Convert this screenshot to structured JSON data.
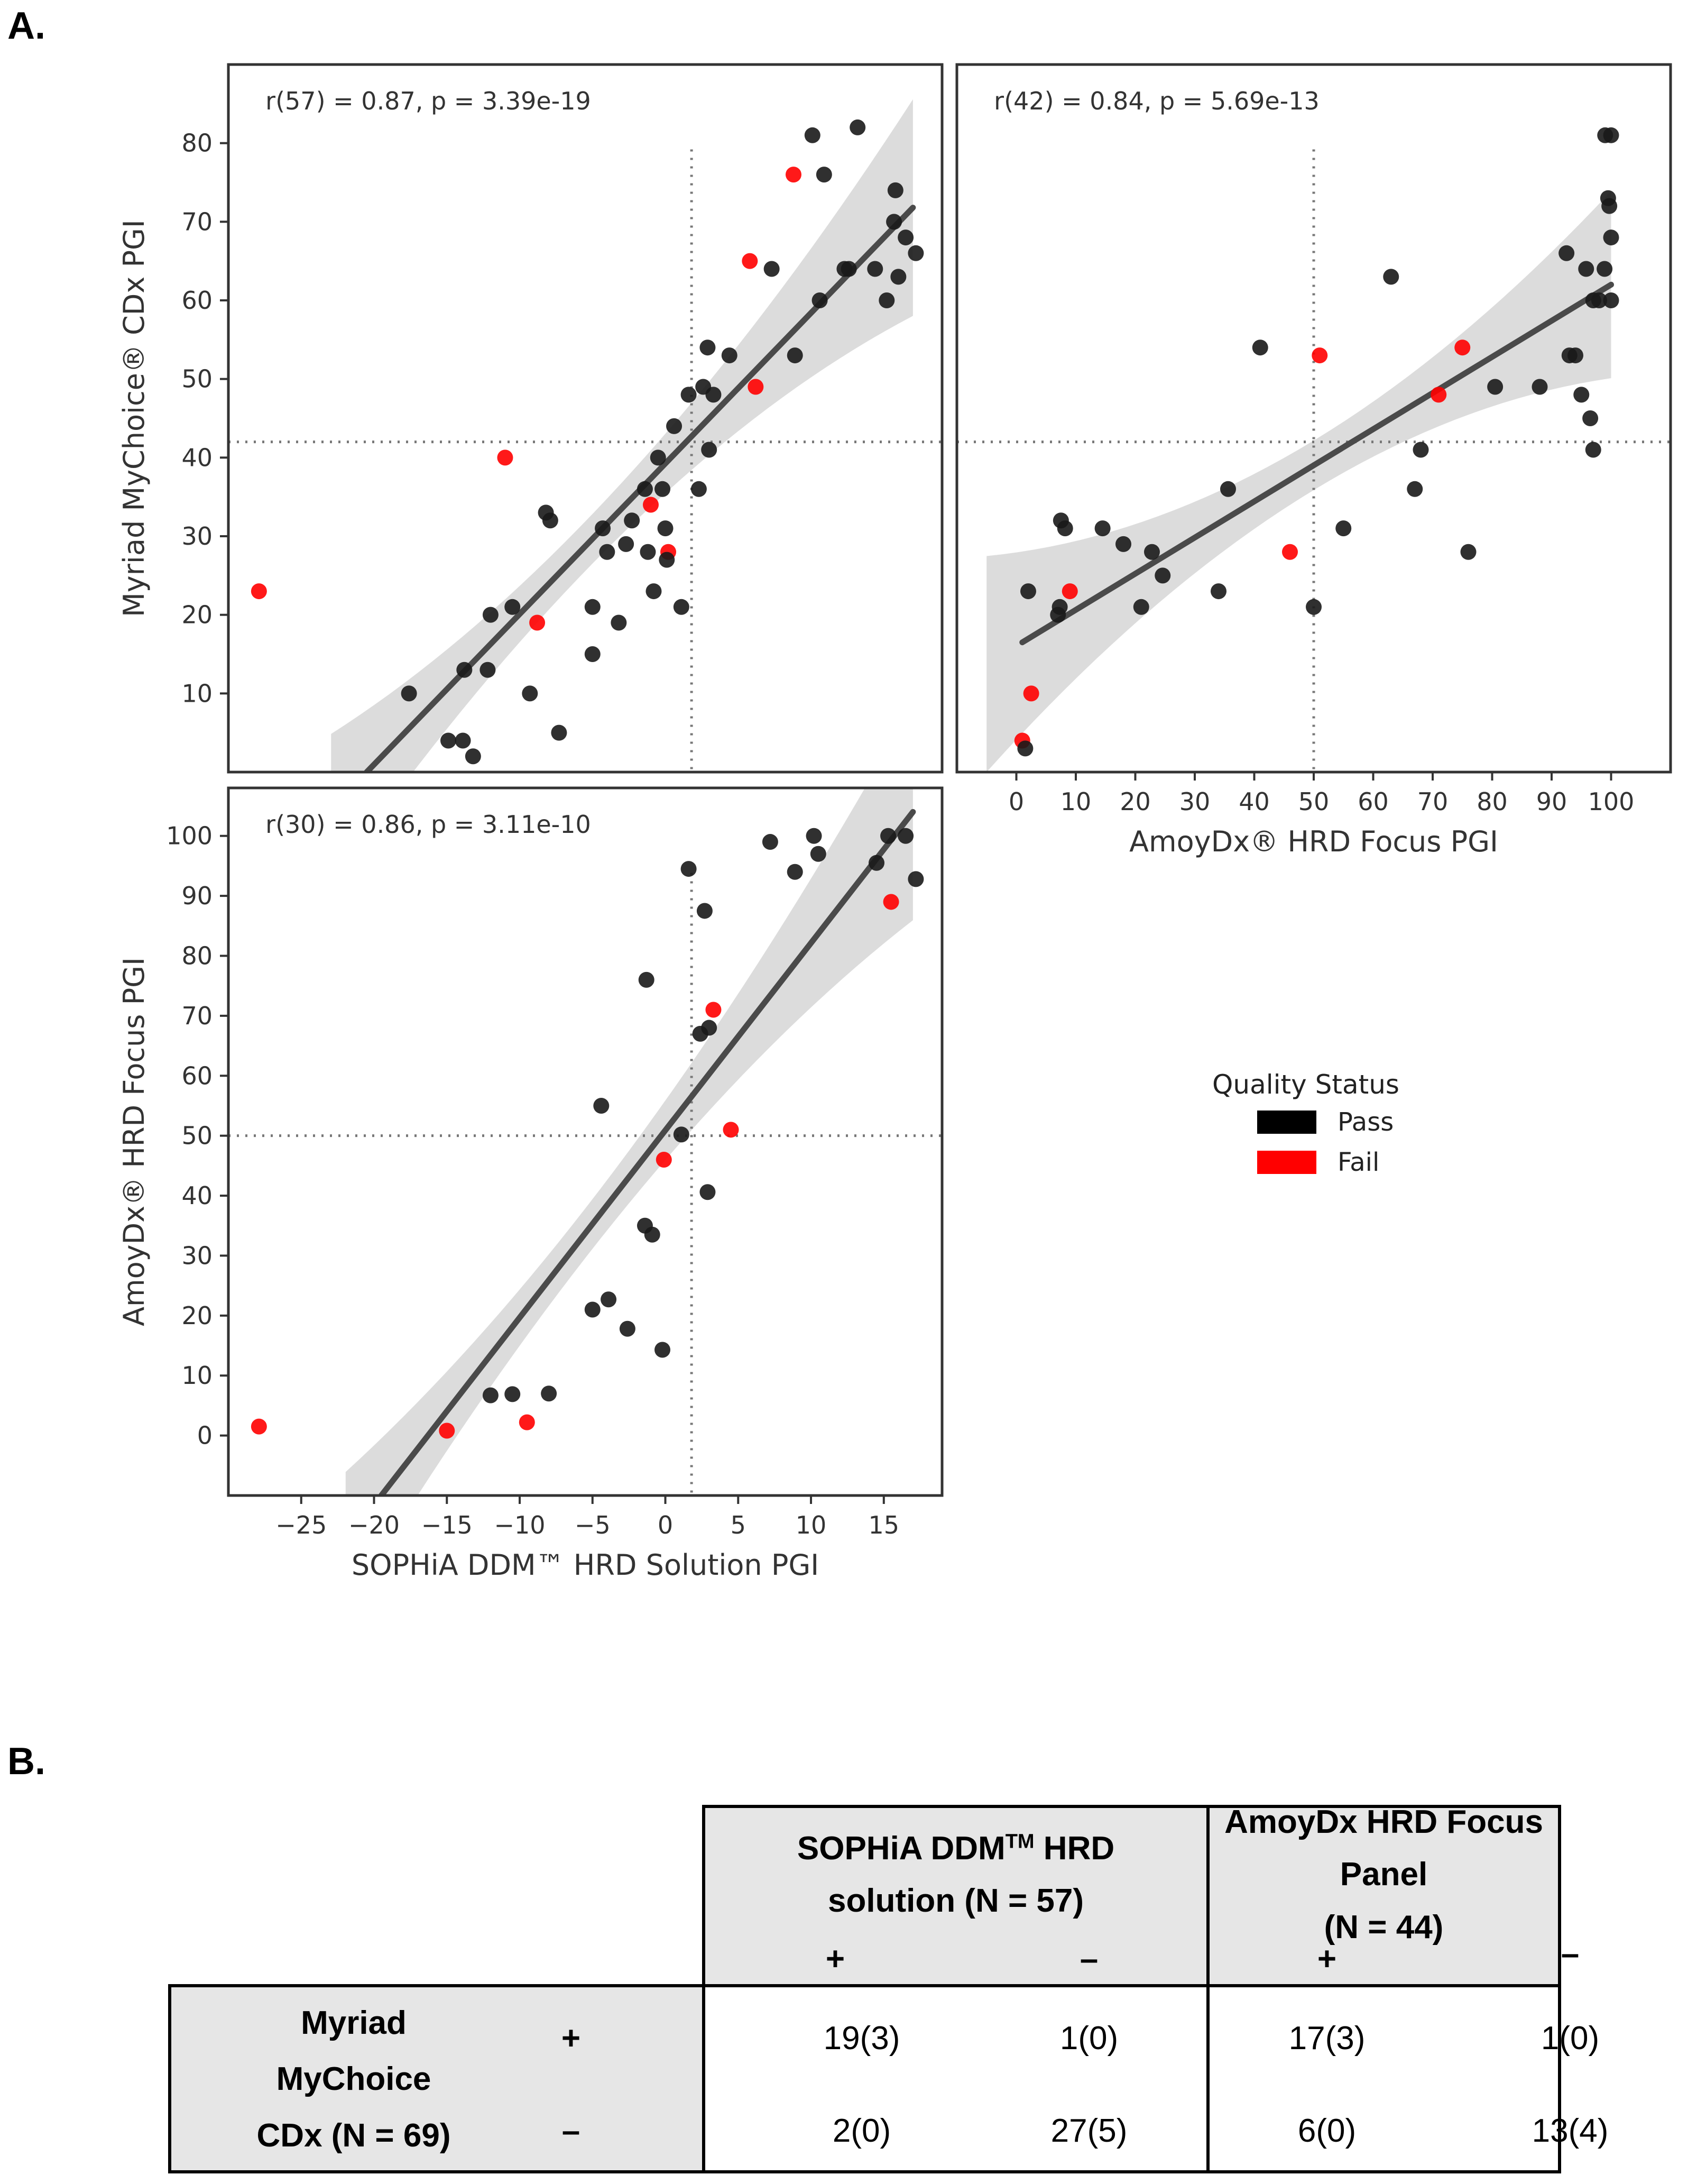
{
  "figure": {
    "label_a": "A.",
    "label_b": "B."
  },
  "legend": {
    "title": "Quality Status",
    "items": [
      {
        "label": "Pass",
        "color": "#000000"
      },
      {
        "label": "Fail",
        "color": "#ff0000"
      }
    ]
  },
  "chart_data": [
    {
      "type": "scatter",
      "id": "sophia-vs-myriad",
      "annotation": "r(57) = 0.87, p = 3.39e-19",
      "xlabel": "",
      "ylabel": "Myriad MyChoice® CDx PGI",
      "xlim": [
        -30,
        19
      ],
      "ylim": [
        0,
        90
      ],
      "xticks": [],
      "yticks": [
        10,
        20,
        30,
        40,
        50,
        60,
        70,
        80
      ],
      "threshold_x": 1.8,
      "threshold_y": 42,
      "regression": {
        "x0": -20.5,
        "y0": 0,
        "x1": 17,
        "y1": 71.8
      },
      "points": [
        {
          "x": -27.9,
          "y": 23,
          "status": "Fail"
        },
        {
          "x": -11,
          "y": 40,
          "status": "Fail"
        },
        {
          "x": -8.8,
          "y": 19,
          "status": "Fail"
        },
        {
          "x": -1,
          "y": 34,
          "status": "Fail"
        },
        {
          "x": 0.2,
          "y": 28,
          "status": "Fail"
        },
        {
          "x": 5.8,
          "y": 65,
          "status": "Fail"
        },
        {
          "x": 6.2,
          "y": 49,
          "status": "Fail"
        },
        {
          "x": 8.8,
          "y": 76,
          "status": "Fail"
        },
        {
          "x": -17.6,
          "y": 10,
          "status": "Pass"
        },
        {
          "x": -14.9,
          "y": 4,
          "status": "Pass"
        },
        {
          "x": -13.9,
          "y": 4,
          "status": "Pass"
        },
        {
          "x": -13.2,
          "y": 2,
          "status": "Pass"
        },
        {
          "x": -13.8,
          "y": 13,
          "status": "Pass"
        },
        {
          "x": -12.2,
          "y": 13,
          "status": "Pass"
        },
        {
          "x": -12,
          "y": 20,
          "status": "Pass"
        },
        {
          "x": -10.5,
          "y": 21,
          "status": "Pass"
        },
        {
          "x": -9.3,
          "y": 10,
          "status": "Pass"
        },
        {
          "x": -8.2,
          "y": 33,
          "status": "Pass"
        },
        {
          "x": -7.9,
          "y": 32,
          "status": "Pass"
        },
        {
          "x": -7.3,
          "y": 5,
          "status": "Pass"
        },
        {
          "x": -5,
          "y": 15,
          "status": "Pass"
        },
        {
          "x": -5,
          "y": 21,
          "status": "Pass"
        },
        {
          "x": -4.3,
          "y": 31,
          "status": "Pass"
        },
        {
          "x": -4,
          "y": 28,
          "status": "Pass"
        },
        {
          "x": -3.2,
          "y": 19,
          "status": "Pass"
        },
        {
          "x": -2.7,
          "y": 29,
          "status": "Pass"
        },
        {
          "x": -2.3,
          "y": 32,
          "status": "Pass"
        },
        {
          "x": -1.4,
          "y": 36,
          "status": "Pass"
        },
        {
          "x": -1.2,
          "y": 28,
          "status": "Pass"
        },
        {
          "x": -0.8,
          "y": 23,
          "status": "Pass"
        },
        {
          "x": -0.5,
          "y": 40,
          "status": "Pass"
        },
        {
          "x": -0.2,
          "y": 36,
          "status": "Pass"
        },
        {
          "x": 0,
          "y": 31,
          "status": "Pass"
        },
        {
          "x": 0.1,
          "y": 27,
          "status": "Pass"
        },
        {
          "x": 0.6,
          "y": 44,
          "status": "Pass"
        },
        {
          "x": 1.1,
          "y": 21,
          "status": "Pass"
        },
        {
          "x": 1.6,
          "y": 48,
          "status": "Pass"
        },
        {
          "x": 2.3,
          "y": 36,
          "status": "Pass"
        },
        {
          "x": 2.6,
          "y": 49,
          "status": "Pass"
        },
        {
          "x": 2.9,
          "y": 54,
          "status": "Pass"
        },
        {
          "x": 3,
          "y": 41,
          "status": "Pass"
        },
        {
          "x": 3.3,
          "y": 48,
          "status": "Pass"
        },
        {
          "x": 4.4,
          "y": 53,
          "status": "Pass"
        },
        {
          "x": 7.3,
          "y": 64,
          "status": "Pass"
        },
        {
          "x": 8.9,
          "y": 53,
          "status": "Pass"
        },
        {
          "x": 10.1,
          "y": 81,
          "status": "Pass"
        },
        {
          "x": 10.6,
          "y": 60,
          "status": "Pass"
        },
        {
          "x": 10.9,
          "y": 76,
          "status": "Pass"
        },
        {
          "x": 12.3,
          "y": 64,
          "status": "Pass"
        },
        {
          "x": 12.6,
          "y": 64,
          "status": "Pass"
        },
        {
          "x": 13.2,
          "y": 82,
          "status": "Pass"
        },
        {
          "x": 14.4,
          "y": 64,
          "status": "Pass"
        },
        {
          "x": 15.2,
          "y": 60,
          "status": "Pass"
        },
        {
          "x": 15.7,
          "y": 70,
          "status": "Pass"
        },
        {
          "x": 15.8,
          "y": 74,
          "status": "Pass"
        },
        {
          "x": 16,
          "y": 63,
          "status": "Pass"
        },
        {
          "x": 16.5,
          "y": 68,
          "status": "Pass"
        },
        {
          "x": 17.2,
          "y": 66,
          "status": "Pass"
        }
      ]
    },
    {
      "type": "scatter",
      "id": "amoydx-vs-myriad",
      "annotation": "r(42) = 0.84, p = 5.69e-13",
      "xlabel": "AmoyDx® HRD Focus PGI",
      "ylabel": "",
      "xlim": [
        -10,
        110
      ],
      "ylim": [
        0,
        90
      ],
      "xticks": [
        0,
        10,
        20,
        30,
        40,
        50,
        60,
        70,
        80,
        90,
        100
      ],
      "yticks": [],
      "threshold_x": 50,
      "threshold_y": 42,
      "regression": {
        "x0": 1,
        "y0": 16.5,
        "x1": 100,
        "y1": 62
      },
      "points": [
        {
          "x": 1,
          "y": 4,
          "status": "Fail"
        },
        {
          "x": 2.5,
          "y": 10,
          "status": "Fail"
        },
        {
          "x": 9,
          "y": 23,
          "status": "Fail"
        },
        {
          "x": 46,
          "y": 28,
          "status": "Fail"
        },
        {
          "x": 51,
          "y": 53,
          "status": "Fail"
        },
        {
          "x": 71,
          "y": 48,
          "status": "Fail"
        },
        {
          "x": 75,
          "y": 54,
          "status": "Fail"
        },
        {
          "x": 1.5,
          "y": 3,
          "status": "Pass"
        },
        {
          "x": 2,
          "y": 23,
          "status": "Pass"
        },
        {
          "x": 7,
          "y": 20,
          "status": "Pass"
        },
        {
          "x": 7.3,
          "y": 21,
          "status": "Pass"
        },
        {
          "x": 7.5,
          "y": 32,
          "status": "Pass"
        },
        {
          "x": 8.2,
          "y": 31,
          "status": "Pass"
        },
        {
          "x": 14.5,
          "y": 31,
          "status": "Pass"
        },
        {
          "x": 18,
          "y": 29,
          "status": "Pass"
        },
        {
          "x": 21,
          "y": 21,
          "status": "Pass"
        },
        {
          "x": 22.8,
          "y": 28,
          "status": "Pass"
        },
        {
          "x": 24.6,
          "y": 25,
          "status": "Pass"
        },
        {
          "x": 34,
          "y": 23,
          "status": "Pass"
        },
        {
          "x": 35.6,
          "y": 36,
          "status": "Pass"
        },
        {
          "x": 41,
          "y": 54,
          "status": "Pass"
        },
        {
          "x": 50,
          "y": 21,
          "status": "Pass"
        },
        {
          "x": 55,
          "y": 31,
          "status": "Pass"
        },
        {
          "x": 63,
          "y": 63,
          "status": "Pass"
        },
        {
          "x": 67,
          "y": 36,
          "status": "Pass"
        },
        {
          "x": 68,
          "y": 41,
          "status": "Pass"
        },
        {
          "x": 76,
          "y": 28,
          "status": "Pass"
        },
        {
          "x": 80.5,
          "y": 49,
          "status": "Pass"
        },
        {
          "x": 88,
          "y": 49,
          "status": "Pass"
        },
        {
          "x": 92.5,
          "y": 66,
          "status": "Pass"
        },
        {
          "x": 93,
          "y": 53,
          "status": "Pass"
        },
        {
          "x": 94,
          "y": 53,
          "status": "Pass"
        },
        {
          "x": 95,
          "y": 48,
          "status": "Pass"
        },
        {
          "x": 95.8,
          "y": 64,
          "status": "Pass"
        },
        {
          "x": 96.5,
          "y": 45,
          "status": "Pass"
        },
        {
          "x": 97,
          "y": 41,
          "status": "Pass"
        },
        {
          "x": 97,
          "y": 60,
          "status": "Pass"
        },
        {
          "x": 98,
          "y": 60,
          "status": "Pass"
        },
        {
          "x": 98.9,
          "y": 64,
          "status": "Pass"
        },
        {
          "x": 99,
          "y": 81,
          "status": "Pass"
        },
        {
          "x": 99.5,
          "y": 73,
          "status": "Pass"
        },
        {
          "x": 99.7,
          "y": 72,
          "status": "Pass"
        },
        {
          "x": 100,
          "y": 81,
          "status": "Pass"
        },
        {
          "x": 100,
          "y": 68,
          "status": "Pass"
        },
        {
          "x": 100,
          "y": 60,
          "status": "Pass"
        }
      ]
    },
    {
      "type": "scatter",
      "id": "sophia-vs-amoydx",
      "annotation": "r(30) = 0.86, p = 3.11e-10",
      "xlabel": "SOPHiA DDM™ HRD Solution PGI",
      "ylabel": "AmoyDx® HRD Focus PGI",
      "xlim": [
        -30,
        19
      ],
      "ylim": [
        -10,
        108
      ],
      "xticks": [
        -25,
        -20,
        -15,
        -10,
        -5,
        0,
        5,
        10,
        15
      ],
      "yticks": [
        0,
        10,
        20,
        30,
        40,
        50,
        60,
        70,
        80,
        90,
        100
      ],
      "threshold_x": 1.8,
      "threshold_y": 50,
      "regression": {
        "x0": -19.5,
        "y0": -10,
        "x1": 17,
        "y1": 104
      },
      "points": [
        {
          "x": -27.9,
          "y": 1.5,
          "status": "Fail"
        },
        {
          "x": -15,
          "y": 0.8,
          "status": "Fail"
        },
        {
          "x": -9.5,
          "y": 2.2,
          "status": "Fail"
        },
        {
          "x": -0.1,
          "y": 46,
          "status": "Fail"
        },
        {
          "x": 3.3,
          "y": 71,
          "status": "Fail"
        },
        {
          "x": 4.5,
          "y": 51,
          "status": "Fail"
        },
        {
          "x": 15.5,
          "y": 89,
          "status": "Fail"
        },
        {
          "x": -12,
          "y": 6.7,
          "status": "Pass"
        },
        {
          "x": -10.5,
          "y": 6.9,
          "status": "Pass"
        },
        {
          "x": -8,
          "y": 7,
          "status": "Pass"
        },
        {
          "x": -5,
          "y": 21,
          "status": "Pass"
        },
        {
          "x": -4.4,
          "y": 55,
          "status": "Pass"
        },
        {
          "x": -3.9,
          "y": 22.7,
          "status": "Pass"
        },
        {
          "x": -2.6,
          "y": 17.8,
          "status": "Pass"
        },
        {
          "x": -1.4,
          "y": 35,
          "status": "Pass"
        },
        {
          "x": -1.3,
          "y": 76,
          "status": "Pass"
        },
        {
          "x": -0.9,
          "y": 33.5,
          "status": "Pass"
        },
        {
          "x": -0.2,
          "y": 14.3,
          "status": "Pass"
        },
        {
          "x": 1.1,
          "y": 50.2,
          "status": "Pass"
        },
        {
          "x": 1.6,
          "y": 94.5,
          "status": "Pass"
        },
        {
          "x": 2.4,
          "y": 67,
          "status": "Pass"
        },
        {
          "x": 2.7,
          "y": 87.5,
          "status": "Pass"
        },
        {
          "x": 2.9,
          "y": 40.6,
          "status": "Pass"
        },
        {
          "x": 3,
          "y": 68,
          "status": "Pass"
        },
        {
          "x": 7.2,
          "y": 99,
          "status": "Pass"
        },
        {
          "x": 8.9,
          "y": 94,
          "status": "Pass"
        },
        {
          "x": 10.2,
          "y": 100,
          "status": "Pass"
        },
        {
          "x": 10.5,
          "y": 97,
          "status": "Pass"
        },
        {
          "x": 14.5,
          "y": 95.5,
          "status": "Pass"
        },
        {
          "x": 15.3,
          "y": 100,
          "status": "Pass"
        },
        {
          "x": 16.5,
          "y": 100,
          "status": "Pass"
        },
        {
          "x": 17.2,
          "y": 92.8,
          "status": "Pass"
        }
      ]
    }
  ],
  "table": {
    "col_group_1": {
      "line1": "SOPHiA DDM",
      "sup": "TM",
      "line1_end": " HRD",
      "line2": "solution (N = 57)"
    },
    "col_group_2": {
      "line1": "AmoyDx HRD Focus Panel",
      "line2": "(N = 44)"
    },
    "sign_plus": "+",
    "sign_minus": "–",
    "row_header": {
      "line1": "Myriad",
      "line2": "MyChoice",
      "line3": "CDx (N = 69)"
    },
    "rows": [
      {
        "sign": "+",
        "values": [
          "19(3)",
          "1(0)",
          "17(3)",
          "1(0)"
        ]
      },
      {
        "sign": "–",
        "values": [
          "2(0)",
          "27(5)",
          "6(0)",
          "13(4)"
        ]
      }
    ]
  }
}
